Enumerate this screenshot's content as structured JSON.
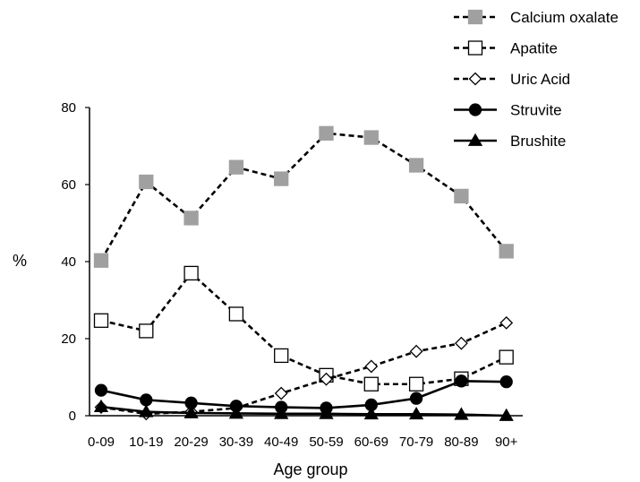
{
  "chart_data": {
    "type": "line",
    "title": "",
    "xlabel": "Age group",
    "ylabel": "%",
    "ylim": [
      0,
      80
    ],
    "yticks": [
      0,
      20,
      40,
      60,
      80
    ],
    "grid": false,
    "legend_position": "top-right",
    "categories": [
      "0-09",
      "10-19",
      "20-29",
      "30-39",
      "40-49",
      "50-59",
      "60-69",
      "70-79",
      "80-89",
      "90+"
    ],
    "series": [
      {
        "name": "Calcium oxalate",
        "line": "dashed",
        "marker": "square",
        "marker_fill": "#a0a0a0",
        "values": [
          40.3,
          60.7,
          51.3,
          64.5,
          61.5,
          73.3,
          72.2,
          65.0,
          57.0,
          42.7
        ]
      },
      {
        "name": "Apatite",
        "line": "dashed",
        "marker": "square",
        "marker_fill": "#ffffff",
        "values": [
          24.7,
          22.0,
          37.0,
          26.4,
          15.6,
          10.5,
          8.2,
          8.2,
          9.6,
          15.2
        ]
      },
      {
        "name": "Uric Acid",
        "line": "dashed",
        "marker": "diamond",
        "marker_fill": "#ffffff",
        "values": [
          2.2,
          0.5,
          1.0,
          2.0,
          5.8,
          9.5,
          12.8,
          16.7,
          18.8,
          24.1
        ]
      },
      {
        "name": "Struvite",
        "line": "solid",
        "marker": "circle",
        "marker_fill": "#000000",
        "values": [
          6.6,
          4.1,
          3.3,
          2.5,
          2.2,
          2.0,
          2.8,
          4.5,
          9.0,
          8.8
        ]
      },
      {
        "name": "Brushite",
        "line": "solid",
        "marker": "triangle",
        "marker_fill": "#000000",
        "values": [
          2.3,
          1.0,
          0.7,
          0.6,
          0.5,
          0.5,
          0.4,
          0.4,
          0.3,
          0.0
        ]
      }
    ]
  }
}
